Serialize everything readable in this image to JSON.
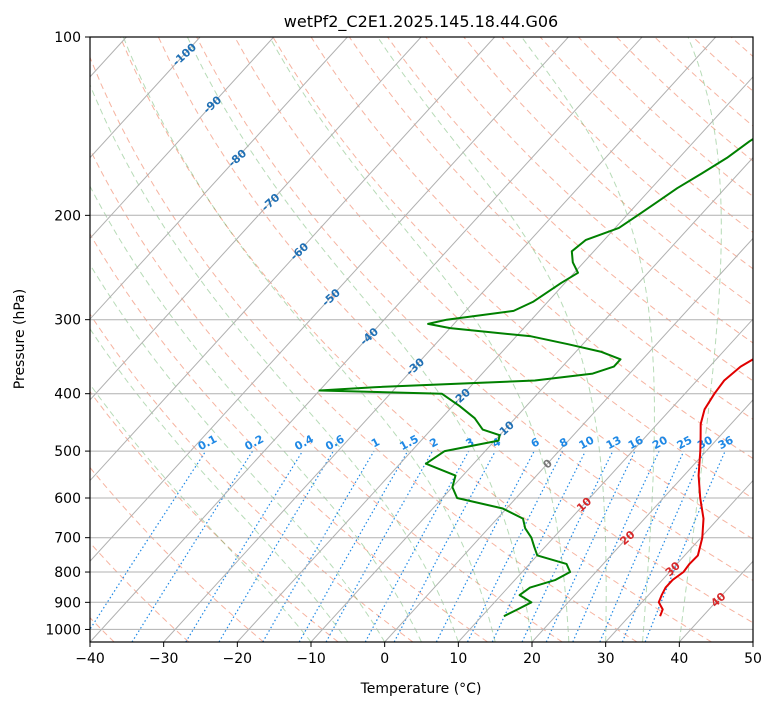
{
  "chart_data": {
    "type": "line",
    "title": "wetPf2_C2E1.2025.145.18.44.G06",
    "xlabel": "Temperature (°C)",
    "ylabel": "Pressure (hPa)",
    "xlim": [
      -40,
      50
    ],
    "ylim": [
      1050,
      100
    ],
    "y_scale": "log",
    "x_ticks": [
      -40,
      -30,
      -20,
      -10,
      0,
      10,
      20,
      30,
      40,
      50
    ],
    "y_ticks": [
      100,
      200,
      300,
      400,
      500,
      600,
      700,
      800,
      900,
      1000
    ],
    "grid": true,
    "skew_t": true,
    "colors": {
      "temperature": "#e00000",
      "dewpoint": "#008000",
      "isotherm": "#b0b0b0",
      "dry_adiabat": "#f08060",
      "moist_adiabat": "#60b060",
      "mixing_ratio": "#1e88e5",
      "iso_label_blue": "#1f6fb4",
      "iso_label_red": "#d62728"
    },
    "series": [
      {
        "key": "temperature",
        "pressure": [
          950,
          925,
          900,
          875,
          850,
          825,
          800,
          775,
          750,
          700,
          650,
          600,
          550,
          500,
          475,
          450,
          425,
          400,
          380,
          360,
          350,
          340,
          320,
          300,
          280,
          260,
          240,
          220,
          200,
          180,
          160,
          140,
          120,
          100
        ],
        "values": [
          34.2,
          33.7,
          32.3,
          31.8,
          31.4,
          31.4,
          31.9,
          31.7,
          31.8,
          30.2,
          28.0,
          25.0,
          22.0,
          19.2,
          17.6,
          15.9,
          14.6,
          14.0,
          13.7,
          14.2,
          15.0,
          15.7,
          16.2,
          15.8,
          13.5,
          11.0,
          8.5,
          6.0,
          3.5,
          1.0,
          -2.0,
          -4.5,
          -6.5,
          -6.0
        ]
      },
      {
        "key": "dewpoint",
        "pressure": [
          950,
          925,
          900,
          875,
          850,
          825,
          800,
          775,
          750,
          725,
          700,
          675,
          650,
          625,
          600,
          575,
          550,
          525,
          500,
          480,
          470,
          460,
          440,
          420,
          400,
          395,
          390,
          380,
          370,
          360,
          350,
          340,
          330,
          320,
          310,
          305,
          300,
          290,
          280,
          260,
          250,
          240,
          230,
          220,
          210,
          200,
          190,
          180,
          170,
          160,
          150,
          140,
          130,
          120,
          110,
          100
        ],
        "values": [
          13.0,
          14.0,
          15.0,
          12.5,
          13.0,
          15.5,
          16.5,
          15.0,
          10.0,
          8.5,
          7.0,
          5.0,
          3.5,
          -0.5,
          -8.0,
          -10.0,
          -11.0,
          -16.5,
          -15.5,
          -9.5,
          -10.0,
          -13.0,
          -15.5,
          -19.0,
          -23.0,
          -40.0,
          -33.0,
          -12.0,
          -5.0,
          -3.0,
          -3.0,
          -6.5,
          -12.0,
          -18.0,
          -30.0,
          -33.5,
          -31.5,
          -23.5,
          -22.0,
          -20.5,
          -19.5,
          -21.5,
          -23.0,
          -22.5,
          -19.5,
          -18.5,
          -17.5,
          -16.5,
          -15.0,
          -13.5,
          -12.5,
          -11.0,
          -9.5,
          -8.5,
          -7.5,
          -6.5
        ]
      }
    ],
    "isotherm_labels": [
      {
        "text": "-100",
        "temp": -100
      },
      {
        "text": "-90",
        "temp": -90
      },
      {
        "text": "-80",
        "temp": -80
      },
      {
        "text": "-70",
        "temp": -70
      },
      {
        "text": "-60",
        "temp": -60
      },
      {
        "text": "-50",
        "temp": -50
      },
      {
        "text": "-40",
        "temp": -40
      },
      {
        "text": "-30",
        "temp": -30
      },
      {
        "text": "-20",
        "temp": -20
      },
      {
        "text": "-10",
        "temp": -10
      },
      {
        "text": "0",
        "temp": 0
      },
      {
        "text": "10",
        "temp": 10
      },
      {
        "text": "20",
        "temp": 20
      },
      {
        "text": "30",
        "temp": 30
      },
      {
        "text": "40",
        "temp": 40
      }
    ],
    "mixing_ratio_labels": [
      {
        "text": "0.1",
        "value": 0.1
      },
      {
        "text": "0.2",
        "value": 0.2
      },
      {
        "text": "0.4",
        "value": 0.4
      },
      {
        "text": "0.6",
        "value": 0.6
      },
      {
        "text": "1",
        "value": 1
      },
      {
        "text": "1.5",
        "value": 1.5
      },
      {
        "text": "2",
        "value": 2
      },
      {
        "text": "3",
        "value": 3
      },
      {
        "text": "4",
        "value": 4
      },
      {
        "text": "6",
        "value": 6
      },
      {
        "text": "8",
        "value": 8
      },
      {
        "text": "10",
        "value": 10
      },
      {
        "text": "13",
        "value": 13
      },
      {
        "text": "16",
        "value": 16
      },
      {
        "text": "20",
        "value": 20
      },
      {
        "text": "25",
        "value": 25
      },
      {
        "text": "30",
        "value": 30
      },
      {
        "text": "36",
        "value": 36
      }
    ]
  }
}
